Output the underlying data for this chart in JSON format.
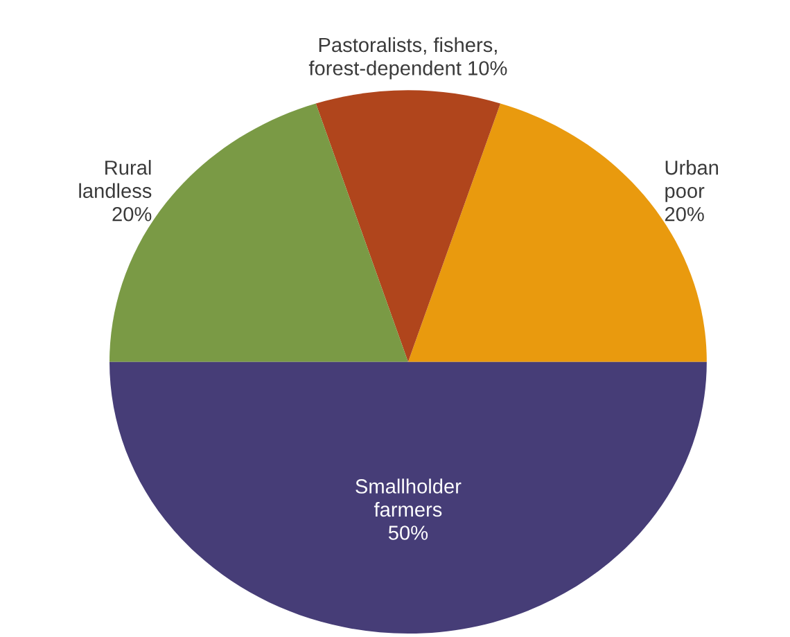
{
  "chart_data": {
    "type": "pie",
    "categories": [
      "Urban\npoor",
      "Pastoralists, fishers,\nforest-dependent",
      "Rural\nlandless",
      "Smallholder\nfarmers"
    ],
    "values": [
      20,
      10,
      20,
      50
    ],
    "value_labels": [
      "20%",
      "10%",
      "20%",
      "50%"
    ],
    "colors": [
      "#e99a0e",
      "#b0451c",
      "#7a9a45",
      "#463d77"
    ]
  }
}
